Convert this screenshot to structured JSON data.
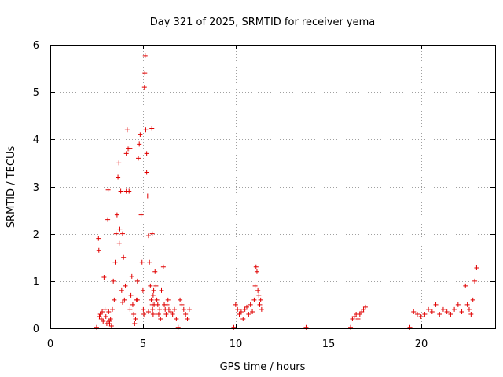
{
  "chart_data": {
    "type": "scatter",
    "title": "Day 321 of 2025, SRMTID for receiver yema",
    "xlabel": "GPS time / hours",
    "ylabel": "SRMTID / TECUs",
    "xlim": [
      0,
      24
    ],
    "ylim": [
      0,
      6
    ],
    "xticks": [
      0,
      5,
      10,
      15,
      20
    ],
    "yticks": [
      0,
      1,
      2,
      3,
      4,
      5,
      6
    ],
    "grid": true,
    "marker": "+",
    "color": "#e00000",
    "series": [
      {
        "name": "SRMTID",
        "x": [
          2.5,
          2.6,
          2.62,
          2.7,
          2.75,
          2.8,
          2.85,
          2.9,
          2.95,
          3.0,
          3.05,
          3.1,
          3.12,
          3.15,
          3.2,
          3.25,
          3.3,
          3.35,
          3.4,
          3.45,
          3.5,
          3.55,
          3.6,
          3.65,
          3.7,
          3.72,
          3.75,
          3.8,
          3.85,
          3.9,
          3.95,
          4.0,
          4.05,
          4.1,
          4.15,
          4.2,
          4.25,
          4.3,
          4.35,
          4.4,
          4.45,
          4.5,
          4.55,
          4.6,
          4.65,
          4.7,
          4.75,
          4.8,
          4.85,
          4.9,
          4.95,
          5.0,
          5.02,
          5.05,
          5.08,
          5.1,
          5.12,
          5.15,
          5.2,
          5.25,
          5.3,
          5.35,
          5.4,
          5.45,
          5.5,
          5.52,
          5.55,
          5.58,
          5.6,
          5.65,
          5.7,
          5.75,
          5.8,
          5.85,
          5.9,
          5.95,
          6.0,
          6.1,
          6.15,
          6.2,
          6.25,
          6.3,
          6.35,
          6.4,
          6.5,
          6.6,
          6.7,
          6.8,
          6.9,
          7.0,
          7.1,
          7.2,
          7.3,
          7.4,
          7.5,
          9.9,
          10.0,
          10.1,
          10.2,
          10.3,
          10.4,
          10.5,
          10.6,
          10.7,
          10.8,
          10.9,
          11.0,
          11.05,
          11.1,
          11.15,
          11.2,
          11.25,
          11.3,
          11.35,
          11.4,
          13.8,
          16.2,
          16.3,
          16.4,
          16.5,
          16.6,
          16.7,
          16.8,
          16.9,
          17.0,
          19.4,
          19.6,
          19.8,
          20.0,
          20.2,
          20.4,
          20.6,
          20.8,
          21.0,
          21.2,
          21.4,
          21.6,
          21.8,
          22.0,
          22.2,
          22.4,
          22.5,
          22.6,
          22.7,
          22.8,
          22.9,
          23.0,
          2.65,
          3.18,
          3.9,
          4.1,
          4.3,
          4.7,
          5.2,
          5.3,
          5.48,
          5.5,
          5.55
        ],
        "y": [
          0.02,
          1.9,
          1.65,
          0.3,
          0.2,
          0.35,
          0.15,
          1.08,
          0.4,
          0.25,
          0.1,
          2.3,
          2.93,
          0.35,
          0.1,
          0.2,
          0.05,
          0.4,
          1.0,
          0.6,
          1.4,
          2.0,
          2.4,
          3.2,
          3.5,
          1.8,
          2.1,
          2.9,
          0.8,
          2.0,
          1.5,
          0.6,
          0.9,
          3.7,
          4.2,
          3.8,
          2.9,
          0.4,
          0.7,
          1.1,
          0.5,
          0.3,
          0.1,
          0.2,
          0.6,
          1.0,
          3.6,
          3.9,
          4.1,
          2.4,
          1.4,
          0.8,
          0.4,
          0.3,
          5.1,
          5.4,
          5.77,
          4.2,
          3.3,
          2.8,
          1.96,
          1.4,
          0.9,
          0.6,
          0.5,
          0.4,
          0.3,
          0.8,
          0.5,
          1.2,
          0.9,
          0.6,
          0.5,
          0.3,
          0.4,
          0.2,
          0.8,
          1.3,
          0.5,
          0.4,
          0.3,
          0.5,
          0.6,
          0.4,
          0.35,
          0.3,
          0.4,
          0.2,
          0.02,
          0.6,
          0.5,
          0.4,
          0.3,
          0.2,
          0.4,
          0.02,
          0.5,
          0.4,
          0.3,
          0.35,
          0.2,
          0.4,
          0.45,
          0.3,
          0.5,
          0.35,
          0.6,
          0.9,
          1.3,
          1.2,
          0.8,
          0.7,
          0.5,
          0.6,
          0.4,
          0.02,
          0.02,
          0.2,
          0.25,
          0.3,
          0.2,
          0.3,
          0.35,
          0.4,
          0.45,
          0.02,
          0.35,
          0.3,
          0.25,
          0.3,
          0.4,
          0.35,
          0.5,
          0.3,
          0.4,
          0.35,
          0.3,
          0.4,
          0.5,
          0.35,
          0.9,
          0.5,
          0.4,
          0.3,
          0.6,
          1.0,
          1.28,
          0.25,
          0.15,
          0.55,
          2.9,
          3.8,
          0.6,
          3.7,
          0.35,
          4.23,
          2.0,
          0.7
        ]
      }
    ]
  }
}
